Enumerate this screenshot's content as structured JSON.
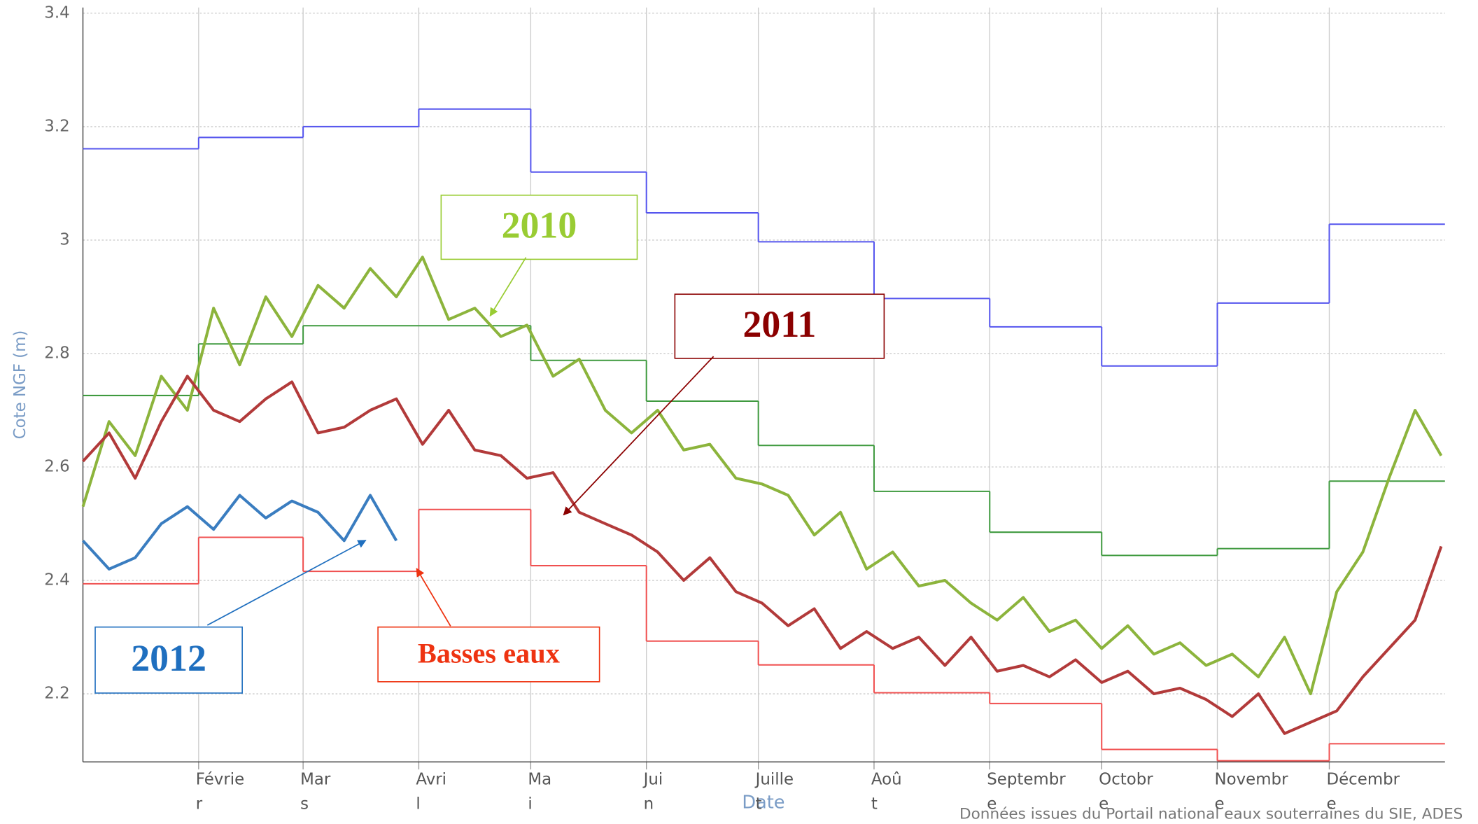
{
  "chart_data": {
    "type": "line",
    "y_label": "Cote NGF (m)",
    "x_label": "Date",
    "source": "Données issues du Portail national eaux souterraines du SIE, ADES",
    "xlim": [
      0,
      365
    ],
    "ylim": [
      2.08,
      3.41
    ],
    "yticks": [
      2.2,
      2.4,
      2.6,
      2.8,
      3,
      3.2,
      3.4
    ],
    "xticks": [
      {
        "value": 31,
        "label": "Févrie\nr"
      },
      {
        "value": 59,
        "label": "Mar\ns"
      },
      {
        "value": 90,
        "label": "Avri\nl"
      },
      {
        "value": 120,
        "label": "Ma\ni"
      },
      {
        "value": 151,
        "label": "Jui\nn"
      },
      {
        "value": 181,
        "label": "Juille\nt"
      },
      {
        "value": 212,
        "label": "Aoû\nt"
      },
      {
        "value": 243,
        "label": "Septembr\ne"
      },
      {
        "value": 273,
        "label": "Octobr\ne"
      },
      {
        "value": 304,
        "label": "Novembr\ne"
      },
      {
        "value": 334,
        "label": "Décembr\ne"
      }
    ],
    "grid": true,
    "series": [
      {
        "color": "#5555ee",
        "step": true,
        "x": [
          0,
          31,
          59,
          90,
          120,
          151,
          181,
          212,
          243,
          273,
          304,
          334
        ],
        "values": [
          3.161,
          3.181,
          3.2,
          3.231,
          3.12,
          3.048,
          2.997,
          2.897,
          2.847,
          2.778,
          2.889,
          3.028
        ]
      },
      {
        "color": "#3f9a3f",
        "step": true,
        "x": [
          0,
          31,
          59,
          90,
          120,
          151,
          181,
          212,
          243,
          273,
          304,
          334
        ],
        "values": [
          2.726,
          2.817,
          2.849,
          2.849,
          2.788,
          2.716,
          2.638,
          2.557,
          2.485,
          2.444,
          2.456,
          2.575
        ]
      },
      {
        "color": "#f05050",
        "step": true,
        "x": [
          0,
          31,
          59,
          90,
          120,
          151,
          181,
          212,
          243,
          273,
          304,
          334
        ],
        "values": [
          2.394,
          2.476,
          2.416,
          2.525,
          2.426,
          2.293,
          2.251,
          2.202,
          2.183,
          2.102,
          2.082,
          2.112
        ]
      },
      {
        "color": "#8cb43c",
        "x": [
          0,
          7,
          14,
          21,
          28,
          35,
          42,
          49,
          56,
          63,
          70,
          77,
          84,
          91,
          98,
          105,
          112,
          119,
          126,
          133,
          140,
          147,
          154,
          161,
          168,
          175,
          182,
          189,
          196,
          203,
          210,
          217,
          224,
          231,
          238,
          245,
          252,
          259,
          266,
          273,
          280,
          287,
          294,
          301,
          308,
          315,
          322,
          329,
          336,
          343,
          350,
          357,
          364
        ],
        "values": [
          2.53,
          2.68,
          2.62,
          2.76,
          2.7,
          2.88,
          2.78,
          2.9,
          2.83,
          2.92,
          2.88,
          2.95,
          2.9,
          2.97,
          2.86,
          2.88,
          2.83,
          2.85,
          2.76,
          2.79,
          2.7,
          2.66,
          2.7,
          2.63,
          2.64,
          2.58,
          2.57,
          2.55,
          2.48,
          2.52,
          2.42,
          2.45,
          2.39,
          2.4,
          2.36,
          2.33,
          2.37,
          2.31,
          2.33,
          2.28,
          2.32,
          2.27,
          2.29,
          2.25,
          2.27,
          2.23,
          2.3,
          2.2,
          2.38,
          2.45,
          2.58,
          2.7,
          2.62
        ]
      },
      {
        "color": "#b23a3a",
        "x": [
          0,
          7,
          14,
          21,
          28,
          35,
          42,
          49,
          56,
          63,
          70,
          77,
          84,
          91,
          98,
          105,
          112,
          119,
          126,
          133,
          140,
          147,
          154,
          161,
          168,
          175,
          182,
          189,
          196,
          203,
          210,
          217,
          224,
          231,
          238,
          245,
          252,
          259,
          266,
          273,
          280,
          287,
          294,
          301,
          308,
          315,
          322,
          329,
          336,
          343,
          350,
          357,
          364
        ],
        "values": [
          2.61,
          2.66,
          2.58,
          2.68,
          2.76,
          2.7,
          2.68,
          2.72,
          2.75,
          2.66,
          2.67,
          2.7,
          2.72,
          2.64,
          2.7,
          2.63,
          2.62,
          2.58,
          2.59,
          2.52,
          2.5,
          2.48,
          2.45,
          2.4,
          2.44,
          2.38,
          2.36,
          2.32,
          2.35,
          2.28,
          2.31,
          2.28,
          2.3,
          2.25,
          2.3,
          2.24,
          2.25,
          2.23,
          2.26,
          2.22,
          2.24,
          2.2,
          2.21,
          2.19,
          2.16,
          2.2,
          2.13,
          2.15,
          2.17,
          2.23,
          2.28,
          2.33,
          2.46
        ]
      },
      {
        "color": "#3a7dc0",
        "x": [
          0,
          7,
          14,
          21,
          28,
          35,
          42,
          49,
          56,
          63,
          70,
          77,
          84
        ],
        "values": [
          2.47,
          2.42,
          2.44,
          2.5,
          2.53,
          2.49,
          2.55,
          2.51,
          2.54,
          2.52,
          2.47,
          2.55,
          2.47
        ]
      }
    ],
    "annotations": [
      {
        "text": "2010",
        "color": "#99cc33"
      },
      {
        "text": "2011",
        "color": "#8b0000"
      },
      {
        "text": "2012",
        "color": "#1f6fbf"
      },
      {
        "text": "Basses eaux",
        "color": "#ee3311"
      }
    ]
  }
}
